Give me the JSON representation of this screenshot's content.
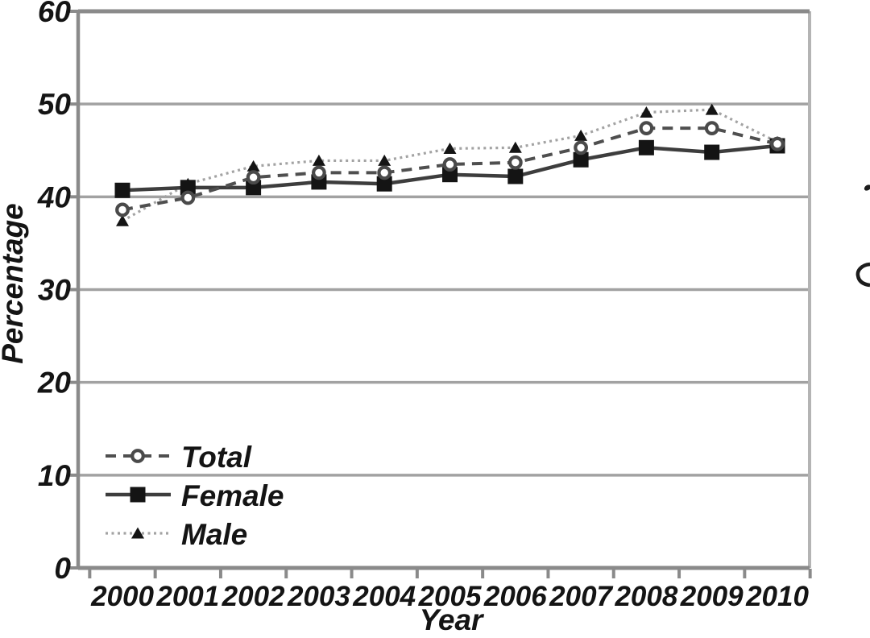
{
  "figure": {
    "background": "#ffffff",
    "text_color": "#141414",
    "grid_color": "#a2a2a2",
    "axis_color": "#8a8a8a",
    "right_border_color": "#b4b4b4"
  },
  "chart_data": {
    "type": "line",
    "title": "",
    "xlabel": "Year",
    "ylabel": "Percentage",
    "x": [
      2000,
      2001,
      2002,
      2003,
      2004,
      2005,
      2006,
      2007,
      2008,
      2009,
      2010
    ],
    "ylim": [
      0,
      60
    ],
    "yticks": [
      0,
      10,
      20,
      30,
      40,
      50,
      60
    ],
    "grid": true,
    "legend_position": "lower-left",
    "series": [
      {
        "name": "Total",
        "line_style": "dashed",
        "line_color": "#4f4f4f",
        "line_width": 4,
        "marker": "open-circle",
        "marker_color": "#ffffff",
        "marker_edge": "#4a4a4a",
        "values": [
          38.6,
          39.9,
          42.1,
          42.6,
          42.6,
          43.5,
          43.7,
          45.3,
          47.4,
          47.4,
          45.7
        ]
      },
      {
        "name": "Female",
        "line_style": "solid",
        "line_color": "#3d3d3d",
        "line_width": 4.5,
        "marker": "filled-square",
        "marker_color": "#141414",
        "marker_edge": "#141414",
        "values": [
          40.7,
          41.0,
          41.0,
          41.6,
          41.4,
          42.4,
          42.2,
          44.0,
          45.3,
          44.8,
          45.5
        ]
      },
      {
        "name": "Male",
        "line_style": "dotted",
        "line_color": "#a3a3a3",
        "line_width": 3.2,
        "marker": "filled-triangle",
        "marker_color": "#141414",
        "marker_edge": "#141414",
        "values": [
          37.4,
          41.4,
          43.3,
          43.9,
          43.9,
          45.2,
          45.3,
          46.6,
          49.1,
          49.4,
          45.9
        ]
      }
    ],
    "right_edge_fragments": "clipped glyphs of adjacent figure text at right image border"
  }
}
